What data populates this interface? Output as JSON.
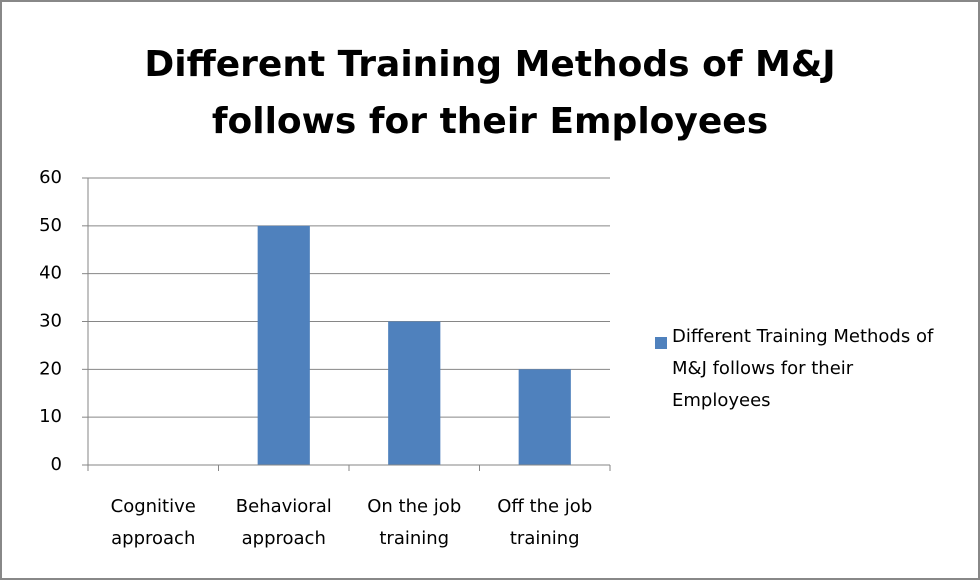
{
  "chart_data": {
    "type": "bar",
    "title": "Different Training Methods of M&J follows for their Employees",
    "categories": [
      "Cognitive approach",
      "Behavioral approach",
      "On the job training",
      "Off the job training"
    ],
    "series": [
      {
        "name": "Different Training Methods of M&J follows for their Employees",
        "color": "#4f81bd",
        "values": [
          0,
          50,
          30,
          20
        ]
      }
    ],
    "ylim": [
      0,
      60
    ],
    "yticks": [
      0,
      10,
      20,
      30,
      40,
      50,
      60
    ],
    "grid": true,
    "legend": "right"
  }
}
